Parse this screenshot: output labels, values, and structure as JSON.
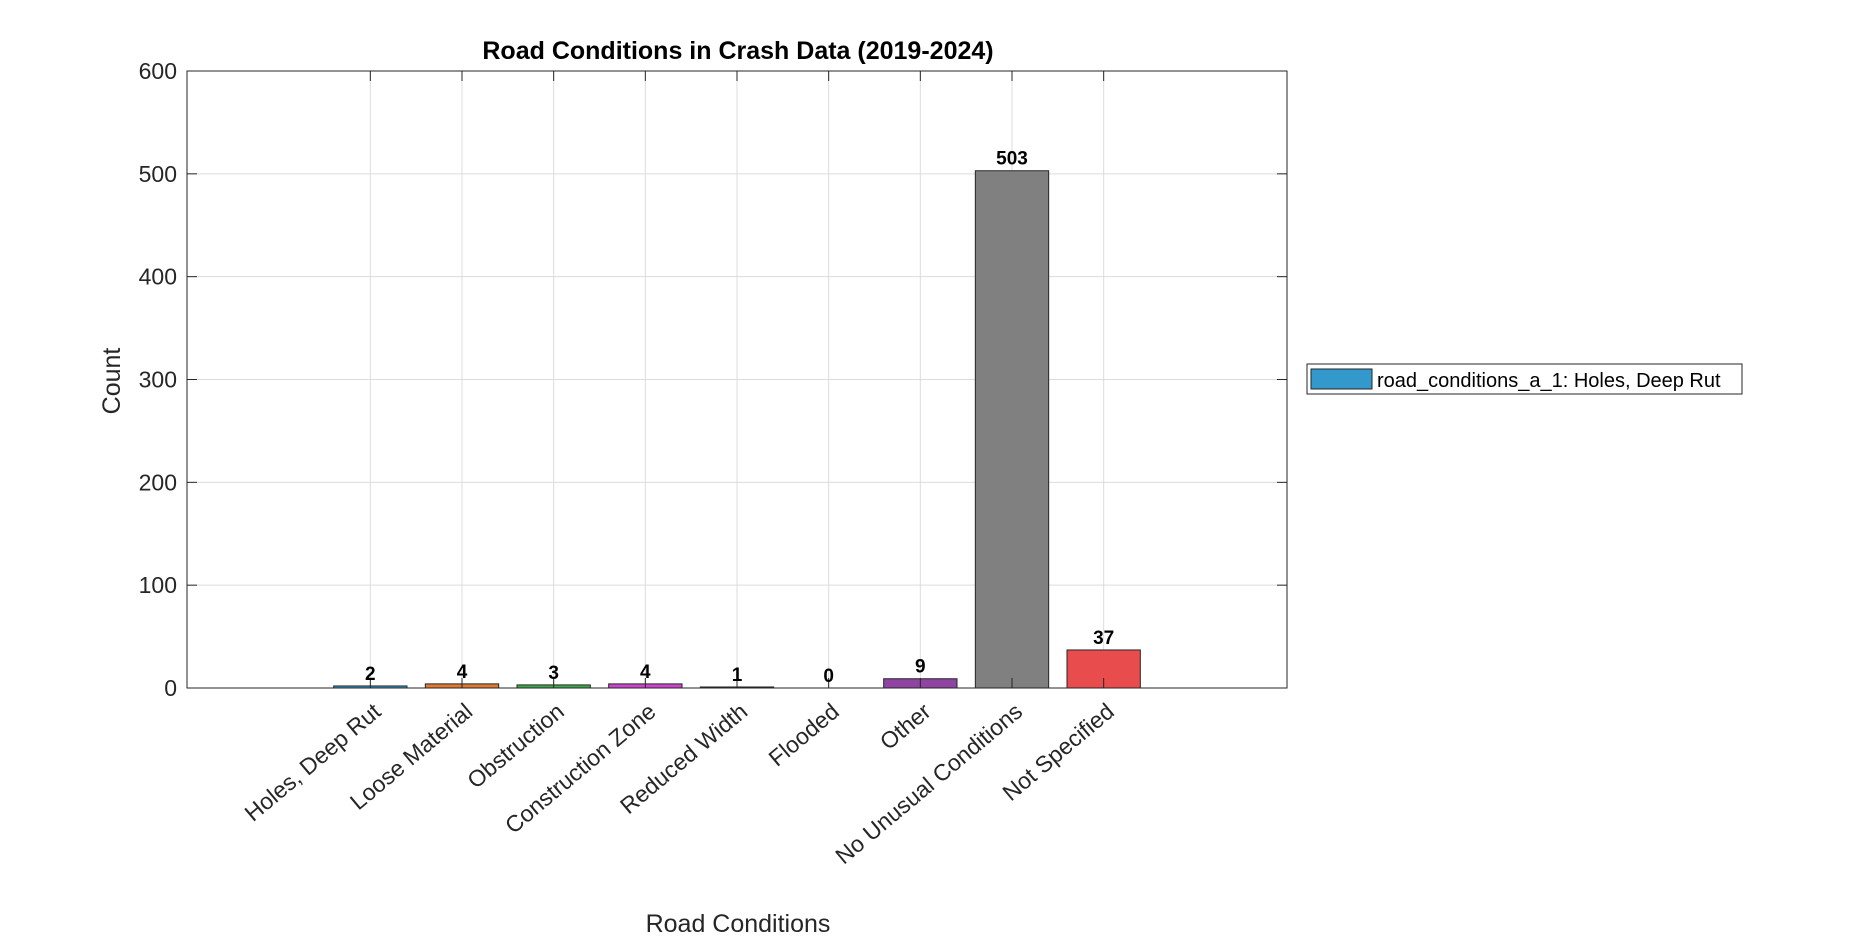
{
  "chart_data": {
    "type": "bar",
    "title": "Road Conditions in Crash Data (2019-2024)",
    "xlabel": "Road Conditions",
    "ylabel": "Count",
    "ylim": [
      0,
      600
    ],
    "yticks": [
      0,
      100,
      200,
      300,
      400,
      500,
      600
    ],
    "grid": true,
    "categories": [
      "Holes, Deep Rut",
      "Loose Material",
      "Obstruction",
      "Construction Zone",
      "Reduced Width",
      "Flooded",
      "Other",
      "No Unusual Conditions",
      "Not Specified"
    ],
    "values": [
      2,
      4,
      3,
      4,
      1,
      0,
      9,
      503,
      37
    ],
    "colors": [
      "#3399cc",
      "#e07a32",
      "#3dab4b",
      "#cc44cc",
      "#1a2a6a",
      "#e8c020",
      "#8e44a0",
      "#808080",
      "#e84c4c"
    ],
    "legend": {
      "placement": "right",
      "entries": [
        {
          "label": "road_conditions_a_1: Holes, Deep Rut",
          "color": "#3399cc"
        }
      ]
    }
  }
}
